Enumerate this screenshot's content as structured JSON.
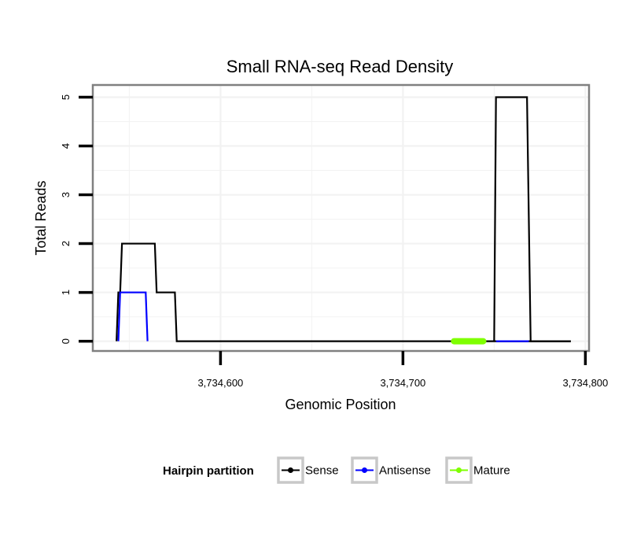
{
  "chart_data": {
    "type": "line",
    "title": "Small RNA-seq Read Density",
    "xlabel": "Genomic Position",
    "ylabel": "Total Reads",
    "xlim": [
      3734530,
      3734802
    ],
    "ylim": [
      -0.2,
      5.25
    ],
    "x_ticks": [
      3734600,
      3734700,
      3734800
    ],
    "x_tick_labels": [
      "3,734,600",
      "3,734,700",
      "3,734,800"
    ],
    "y_ticks": [
      0,
      1,
      2,
      3,
      4,
      5
    ],
    "y_tick_labels": [
      "0",
      "1",
      "2",
      "3",
      "4",
      "5"
    ],
    "grid": true,
    "legend": {
      "title": "Hairpin partition",
      "position": "bottom"
    },
    "series": [
      {
        "name": "Sense",
        "color": "#000000",
        "x": [
          3734543,
          3734544,
          3734545,
          3734546,
          3734547,
          3734564,
          3734565,
          3734566,
          3734575,
          3734576,
          3734792
        ],
        "y": [
          0,
          1,
          1,
          2,
          2,
          2,
          1,
          1,
          1,
          0,
          0
        ]
      },
      {
        "name": "Antisense",
        "color": "#0000ff",
        "x": [
          3734544,
          3734545,
          3734559,
          3734560
        ],
        "y": [
          0,
          1,
          1,
          0
        ]
      },
      {
        "name": "Mature",
        "color": "#7fff00",
        "x": [
          3734728,
          3734744
        ],
        "y": [
          0,
          0
        ]
      },
      {
        "name": "Sense",
        "color": "#000000",
        "x": [
          3734750,
          3734751,
          3734768,
          3734770,
          3734792
        ],
        "y": [
          0,
          5,
          5,
          0,
          0
        ]
      },
      {
        "name": "Antisense",
        "color": "#0000ff",
        "x": [
          3734751,
          3734769
        ],
        "y": [
          0,
          0
        ]
      }
    ],
    "legend_entries": [
      {
        "name": "Sense",
        "color": "#000000"
      },
      {
        "name": "Antisense",
        "color": "#0000ff"
      },
      {
        "name": "Mature",
        "color": "#7fff00"
      }
    ]
  }
}
